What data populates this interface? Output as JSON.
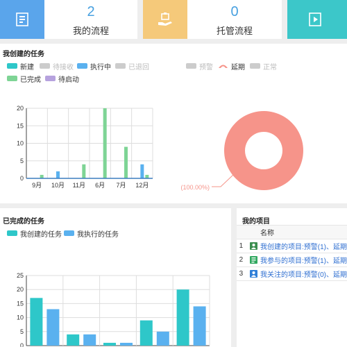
{
  "stats": [
    {
      "value": "",
      "label": "",
      "color": "#5aa5eb"
    },
    {
      "value": "2",
      "label": "我的流程"
    },
    {
      "value": "",
      "label": "",
      "color": "#f5c97a"
    },
    {
      "value": "0",
      "label": "托管流程"
    },
    {
      "value": "",
      "label": "",
      "color": "#3cc7c9"
    }
  ],
  "created_tasks": {
    "title": "我创建的任务",
    "legend_bar": [
      {
        "label": "新建",
        "color": "#2ec7c9",
        "active": true
      },
      {
        "label": "待接收",
        "color": "#cccccc",
        "active": false
      },
      {
        "label": "执行中",
        "color": "#5ab1ef",
        "active": true
      },
      {
        "label": "已退回",
        "color": "#cccccc",
        "active": false
      },
      {
        "label": "已完成",
        "color": "#7ed495",
        "active": true
      },
      {
        "label": "待启动",
        "color": "#b6a2de",
        "active": true
      }
    ],
    "legend_pie": [
      {
        "label": "预警",
        "color": "#cccccc",
        "active": false
      },
      {
        "label": "延期",
        "color": "#f6948a",
        "active": true
      },
      {
        "label": "正常",
        "color": "#cccccc",
        "active": false
      }
    ],
    "pie_label": "延期(100.00%)"
  },
  "chart_data": [
    {
      "type": "bar",
      "categories": [
        "9月",
        "10月",
        "11月",
        "6月",
        "7月",
        "12月"
      ],
      "ylim": [
        0,
        20
      ],
      "yticks": [
        "0",
        "5",
        "10",
        "15",
        "20"
      ],
      "series": [
        {
          "name": "新建",
          "color": "#2ec7c9",
          "values": [
            0,
            0,
            0,
            0,
            0,
            0
          ]
        },
        {
          "name": "执行中",
          "color": "#5ab1ef",
          "values": [
            0,
            2,
            0,
            0,
            0,
            4
          ]
        },
        {
          "name": "已完成",
          "color": "#7ed495",
          "values": [
            1,
            0,
            4,
            20,
            9,
            1
          ]
        }
      ]
    },
    {
      "type": "pie",
      "slices": [
        {
          "label": "延期",
          "value": 100,
          "color": "#f6948a"
        }
      ]
    },
    {
      "type": "bar",
      "categories": [
        "",
        "",
        "",
        "",
        ""
      ],
      "ylim": [
        0,
        25
      ],
      "yticks": [
        "0",
        "5",
        "10",
        "15",
        "20",
        "25"
      ],
      "series": [
        {
          "name": "我创建的任务",
          "color": "#2ec7c9",
          "values": [
            17,
            4,
            1,
            9,
            20
          ]
        },
        {
          "name": "我执行的任务",
          "color": "#5ab1ef",
          "values": [
            13,
            4,
            1,
            5,
            14
          ]
        }
      ]
    }
  ],
  "completed_tasks": {
    "title": "已完成的任务",
    "legend": [
      {
        "label": "我创建的任务",
        "color": "#2ec7c9"
      },
      {
        "label": "我执行的任务",
        "color": "#5ab1ef"
      }
    ]
  },
  "my_projects": {
    "title": "我的项目",
    "header": "名称",
    "rows": [
      {
        "num": "1",
        "text": "我创建的项目:预警(1)、延期",
        "icon_color": "#3c8e4f"
      },
      {
        "num": "2",
        "text": "我参与的项目:预警(1)、延期",
        "icon_color": "#2fa75e"
      },
      {
        "num": "3",
        "text": "我关注的项目:预警(0)、延期",
        "icon_color": "#2f7fd8"
      }
    ]
  }
}
